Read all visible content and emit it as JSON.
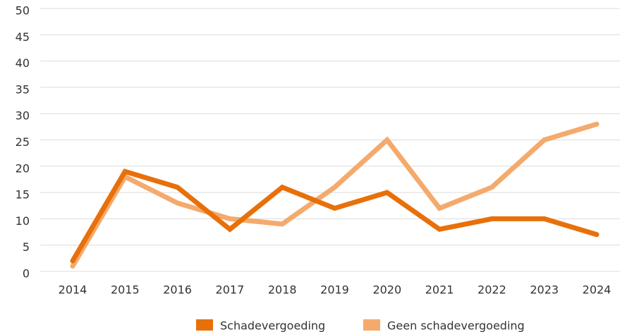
{
  "chart_data": {
    "type": "line",
    "categories": [
      "2014",
      "2015",
      "2016",
      "2017",
      "2018",
      "2019",
      "2020",
      "2021",
      "2022",
      "2023",
      "2024"
    ],
    "series": [
      {
        "name": "Schadevergoeding",
        "color": "#e8700a",
        "values": [
          2,
          19,
          16,
          8,
          16,
          12,
          15,
          8,
          10,
          10,
          7
        ]
      },
      {
        "name": "Geen schadevergoeding",
        "color": "#f4aa6c",
        "values": [
          1,
          18,
          13,
          10,
          9,
          16,
          25,
          12,
          16,
          25,
          28
        ]
      }
    ],
    "ylim": [
      0,
      50
    ],
    "yticks": [
      0,
      5,
      10,
      15,
      20,
      25,
      30,
      35,
      40,
      45,
      50
    ],
    "grid": true,
    "legend": "bottom"
  }
}
